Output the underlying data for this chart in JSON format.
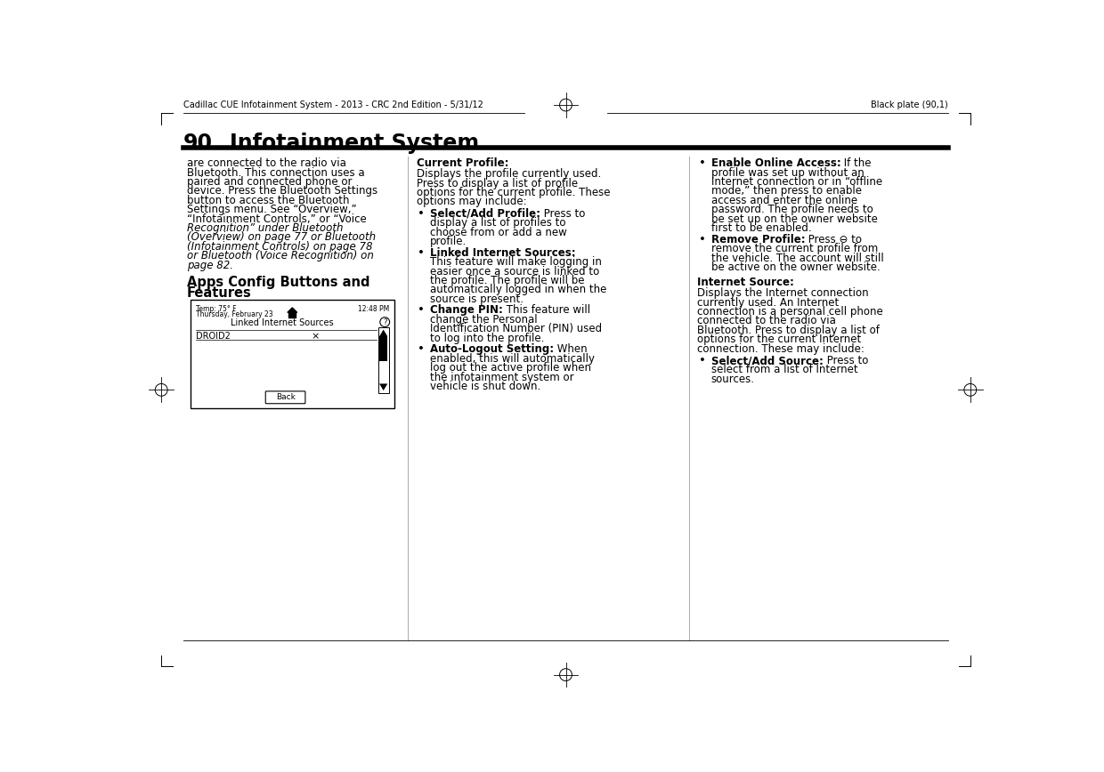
{
  "bg_color": "#ffffff",
  "header_left": "Cadillac CUE Infotainment System - 2013 - CRC 2nd Edition - 5/31/12",
  "header_right": "Black plate (90,1)",
  "section_number": "90",
  "section_title": "Infotainment System",
  "col1_lines": [
    {
      "text": "are connected to the radio via",
      "italic": false
    },
    {
      "text": "Bluetooth. This connection uses a",
      "italic": false
    },
    {
      "text": "paired and connected phone or",
      "italic": false
    },
    {
      "text": "device. Press the Bluetooth Settings",
      "italic": false
    },
    {
      "text": "button to access the Bluetooth",
      "italic": false
    },
    {
      "text": "Settings menu. See “Overview,”",
      "italic": false
    },
    {
      "text": "“Infotainment Controls,” or “Voice",
      "italic": false
    },
    {
      "text": "Recognition” under Bluetooth",
      "italic": true
    },
    {
      "text": "(Overview) on page 77 or Bluetooth",
      "italic": true
    },
    {
      "text": "(Infotainment Controls) on page 78",
      "italic": true
    },
    {
      "text": "or Bluetooth (Voice Recognition) on",
      "italic": true
    },
    {
      "text": "page 82.",
      "italic": true
    }
  ],
  "subsection_title1": "Apps Config Buttons and",
  "subsection_title2": "Features",
  "screen_date1": "Temp: 75° F",
  "screen_date2": "Thursday, February 23",
  "screen_time": "12:48 PM",
  "screen_title": "Linked Internet Sources",
  "screen_item": "DROID2",
  "col2_header": "Current Profile:",
  "col2_intro": [
    "Displays the profile currently used.",
    "Press to display a list of profile",
    "options for the current profile. These",
    "options may include:"
  ],
  "col2_bullets": [
    {
      "bold": "Select/Add Profile:",
      "lines": [
        " Press to",
        "display a list of profiles to",
        "choose from or add a new",
        "profile."
      ]
    },
    {
      "bold": "Linked Internet Sources:",
      "lines": [
        "",
        "This feature will make logging in",
        "easier once a source is linked to",
        "the profile. The profile will be",
        "automatically logged in when the",
        "source is present."
      ]
    },
    {
      "bold": "Change PIN:",
      "lines": [
        " This feature will",
        "change the Personal",
        "Identification Number (PIN) used",
        "to log into the profile."
      ]
    },
    {
      "bold": "Auto-Logout Setting:",
      "lines": [
        " When",
        "enabled, this will automatically",
        "log out the active profile when",
        "the infotainment system or",
        "vehicle is shut down."
      ]
    }
  ],
  "col3_bullets_top": [
    {
      "bold": "Enable Online Access:",
      "lines": [
        " If the",
        "profile was set up without an",
        "Internet connection or in “offline",
        "mode,” then press to enable",
        "access and enter the online",
        "password. The profile needs to",
        "be set up on the owner website",
        "first to be enabled."
      ]
    },
    {
      "bold": "Remove Profile:",
      "lines": [
        " Press ⊖ to",
        "remove the current profile from",
        "the vehicle. The account will still",
        "be active on the owner website."
      ]
    }
  ],
  "col3_header": "Internet Source:",
  "col3_intro": [
    "Displays the Internet connection",
    "currently used. An Internet",
    "connection is a personal cell phone",
    "connected to the radio via",
    "Bluetooth. Press to display a list of",
    "options for the current Internet",
    "connection. These may include:"
  ],
  "col3_bullets_bottom": [
    {
      "bold": "Select/Add Source:",
      "lines": [
        " Press to",
        "select from a list of Internet",
        "sources."
      ]
    }
  ]
}
